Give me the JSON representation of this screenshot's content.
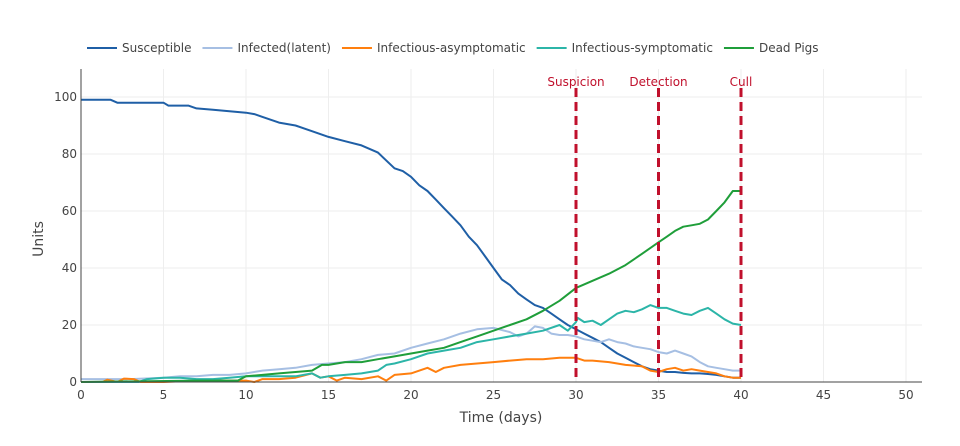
{
  "chart_data": {
    "type": "line",
    "title": "",
    "xlabel": "Time (days)",
    "ylabel": "Units",
    "xlim": [
      0,
      51
    ],
    "ylim": [
      0,
      110
    ],
    "grid": true,
    "legend_position": "top-left, horizontal",
    "x_ticks": [
      0,
      5,
      10,
      15,
      20,
      25,
      30,
      35,
      40,
      45,
      50
    ],
    "y_ticks": [
      0,
      20,
      40,
      60,
      80,
      100
    ],
    "series": [
      {
        "name": "Susceptible",
        "color": "#1f5fa6",
        "x": [
          0,
          1.8,
          2.2,
          5,
          5.3,
          6.5,
          7,
          8,
          9,
          10,
          10.5,
          11,
          12,
          13,
          14,
          15,
          16,
          17,
          18,
          19,
          19.5,
          20,
          20.5,
          21,
          21.5,
          22,
          22.5,
          23,
          23.5,
          24,
          24.5,
          25,
          25.5,
          26,
          26.5,
          27,
          27.5,
          28,
          28.5,
          29,
          29.5,
          30,
          30.5,
          31,
          31.5,
          32,
          32.5,
          33,
          33.5,
          34,
          34.5,
          35,
          35.5,
          36,
          36.5,
          37,
          37.5,
          38,
          38.5,
          39,
          39.5,
          40
        ],
        "values": [
          99,
          99,
          98,
          98,
          97,
          97,
          96,
          95.5,
          95,
          94.5,
          94,
          93,
          91,
          90,
          88,
          86,
          84.5,
          83,
          80.5,
          75,
          74,
          72,
          69,
          67,
          64,
          61,
          58,
          55,
          51,
          48,
          44,
          40,
          36,
          34,
          31,
          29,
          27,
          26,
          24,
          22,
          20,
          18.5,
          17,
          15.5,
          14,
          12,
          10,
          8.5,
          7,
          5.5,
          4.5,
          4,
          3.5,
          3.5,
          3.2,
          3,
          3,
          2.8,
          2.5,
          2,
          1.5,
          1.5
        ]
      },
      {
        "name": "Infected(latent)",
        "color": "#a6bfe3",
        "x": [
          0,
          3,
          5,
          6,
          7,
          8,
          9,
          10,
          11,
          12,
          13,
          14,
          15,
          16,
          17,
          18,
          19,
          20,
          21,
          22,
          23,
          24,
          25,
          26,
          26.5,
          27,
          27.5,
          28,
          28.5,
          29,
          29.5,
          30,
          30.5,
          31,
          31.5,
          32,
          32.5,
          33,
          33.5,
          34,
          34.5,
          35,
          35.5,
          36,
          36.5,
          37,
          37.5,
          38,
          38.5,
          39,
          39.5,
          40
        ],
        "values": [
          1,
          1,
          1.5,
          2,
          2,
          2.5,
          2.5,
          3,
          4,
          4.5,
          5,
          6,
          6.5,
          7,
          8,
          9.5,
          10,
          12,
          13.5,
          15,
          17,
          18.5,
          19,
          17.5,
          16,
          17,
          19.5,
          19,
          17,
          16.5,
          16.5,
          16,
          15,
          14.5,
          14,
          15,
          14,
          13.5,
          12.5,
          12,
          11.5,
          10.5,
          10,
          11,
          10,
          9,
          7,
          5.5,
          5,
          4.5,
          4,
          4
        ]
      },
      {
        "name": "Infectious-asymptomatic",
        "color": "#ff7f0e",
        "x": [
          0,
          1.3,
          1.6,
          2.2,
          2.6,
          3.2,
          3.6,
          5,
          7,
          9,
          10,
          10.5,
          11,
          12,
          13,
          14,
          14.5,
          15,
          15.5,
          16,
          17,
          18,
          18.5,
          19,
          20,
          21,
          21.5,
          22,
          23,
          24,
          25,
          26,
          27,
          28,
          29,
          30,
          30.5,
          31,
          32,
          33,
          34,
          34.5,
          35,
          35.5,
          36,
          36.5,
          37,
          37.5,
          38,
          38.5,
          39,
          39.5,
          40
        ],
        "values": [
          0,
          0,
          0.8,
          0,
          1.2,
          1,
          0,
          0,
          0.5,
          0.5,
          0.5,
          0,
          1,
          1,
          1.5,
          3,
          1.5,
          2,
          0.5,
          1.5,
          1,
          2,
          0.5,
          2.5,
          3,
          5,
          3.5,
          5,
          6,
          6.5,
          7,
          7.5,
          8,
          8,
          8.5,
          8.5,
          7.5,
          7.5,
          7,
          6,
          5.5,
          4,
          3.5,
          4.5,
          5,
          4,
          4.5,
          4,
          3.5,
          3,
          2,
          1.5,
          1.5
        ]
      },
      {
        "name": "Infectious-symptomatic",
        "color": "#2cb5a8",
        "x": [
          0,
          3.5,
          4,
          5,
          6,
          7,
          8,
          9,
          10,
          11,
          12,
          13,
          14,
          14.5,
          15,
          16,
          17,
          18,
          18.5,
          19,
          20,
          21,
          22,
          23,
          24,
          25,
          26,
          27,
          28,
          29,
          29.5,
          30,
          30.1,
          30.5,
          31,
          31.5,
          32,
          32.5,
          33,
          33.5,
          34,
          34.5,
          35,
          35.5,
          36,
          36.5,
          37,
          37.5,
          38,
          38.5,
          39,
          39.5,
          40
        ],
        "values": [
          0,
          0,
          1,
          1.5,
          1.5,
          1,
          1,
          1.5,
          2,
          2,
          2,
          2,
          3,
          1.5,
          2,
          2.5,
          3,
          4,
          6,
          6.5,
          8,
          10,
          11,
          12,
          14,
          15,
          16,
          17,
          18,
          20,
          18,
          21,
          22.5,
          21,
          21.5,
          20,
          22,
          24,
          25,
          24.5,
          25.5,
          27,
          26,
          26,
          25,
          24,
          23.5,
          25,
          26,
          24,
          22,
          20.5,
          20
        ]
      },
      {
        "name": "Dead Pigs",
        "color": "#1f9e3a",
        "x": [
          0,
          7,
          9.5,
          10,
          11,
          12,
          13,
          14,
          14.6,
          15,
          16,
          17,
          18,
          19,
          20,
          21,
          22,
          23,
          24,
          25,
          26,
          27,
          28,
          29,
          30,
          31,
          32,
          33,
          34,
          35,
          35.5,
          36,
          36.5,
          37,
          37.5,
          38,
          38.5,
          39,
          39.5,
          40
        ],
        "values": [
          0,
          0.5,
          0.5,
          2,
          2.5,
          3,
          3.5,
          4,
          6,
          6,
          7,
          7,
          8,
          9,
          10,
          11,
          12,
          14,
          16,
          18,
          20,
          22,
          25,
          28.5,
          33,
          35.5,
          38,
          41,
          45,
          49,
          51,
          53,
          54.5,
          55,
          55.5,
          57,
          60,
          63,
          67,
          67
        ]
      }
    ],
    "annotations": [
      {
        "label": "Suspicion",
        "x": 30,
        "color": "#c0102c"
      },
      {
        "label": "Detection",
        "x": 35,
        "color": "#c0102c"
      },
      {
        "label": "Cull",
        "x": 40,
        "color": "#c0102c"
      }
    ]
  }
}
